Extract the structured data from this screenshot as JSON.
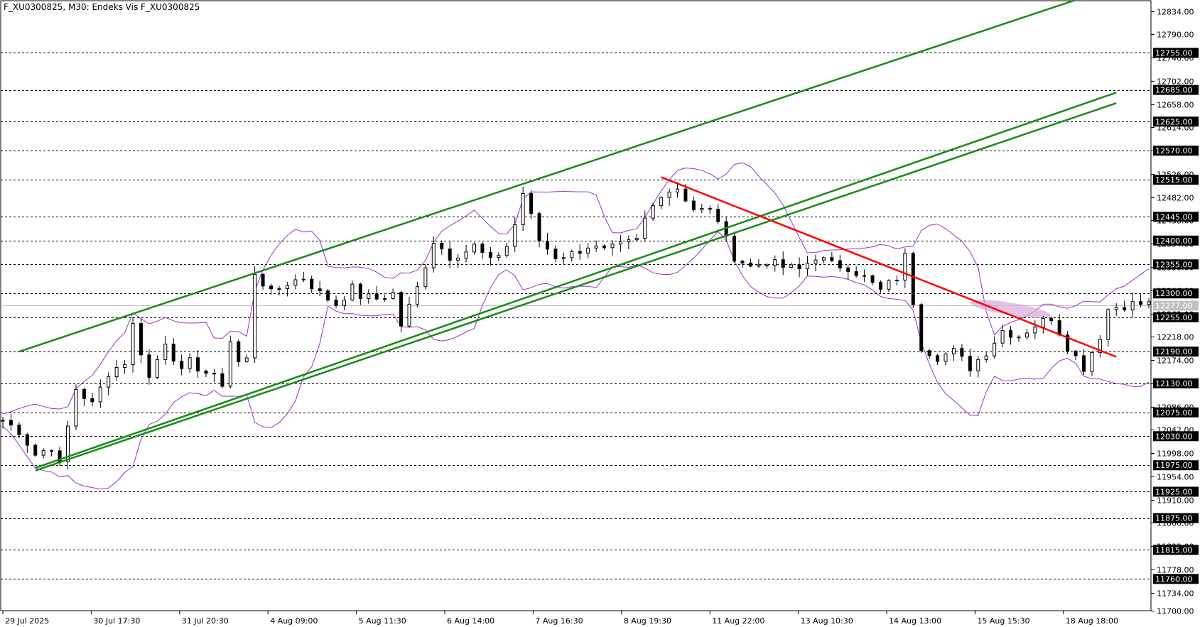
{
  "window": {
    "title": "F_XU0300825, M30:  Endeks Vis F_XU0300825"
  },
  "colors": {
    "background": "#ffffff",
    "grid_level": "#000000",
    "channel": "#1a8a1a",
    "trend": "#ff0000",
    "bands": "#9932cc",
    "candle": "#000000",
    "current_price_line": "#c0c0c0",
    "zone": "#d8a8d8"
  },
  "chart_data": {
    "type": "candlestick",
    "symbol": "F_XU0300825",
    "timeframe": "M30",
    "ylim": [
      11700,
      12855
    ],
    "x_tick_labels": [
      "29 Jul 2025",
      "30 Jul 17:30",
      "31 Jul 20:30",
      "4 Aug 09:00",
      "5 Aug 11:30",
      "6 Aug 14:00",
      "7 Aug 16:30",
      "8 Aug 19:30",
      "11 Aug 22:00",
      "13 Aug 10:30",
      "14 Aug 13:00",
      "15 Aug 15:30",
      "18 Aug 18:00"
    ],
    "y_tick_labels": [
      "12834.00",
      "12790.00",
      "12746.00",
      "12702.00",
      "12658.00",
      "12614.00",
      "12570.00",
      "12526.00",
      "12482.00",
      "12438.00",
      "12394.00",
      "12350.00",
      "12306.00",
      "12262.00",
      "12218.00",
      "12174.00",
      "12130.00",
      "12086.00",
      "12042.00",
      "11998.00",
      "11954.00",
      "11910.00",
      "11866.00",
      "11822.00",
      "11778.00",
      "11734.00",
      "11700.00"
    ],
    "y_ticks": [
      12834,
      12790,
      12746,
      12702,
      12658,
      12614,
      12570,
      12526,
      12482,
      12438,
      12394,
      12350,
      12306,
      12262,
      12218,
      12174,
      12130,
      12086,
      12042,
      11998,
      11954,
      11910,
      11866,
      11822,
      11778,
      11734,
      11700
    ],
    "horizontal_levels": [
      12755,
      12685,
      12625,
      12570,
      12515,
      12445,
      12400,
      12355,
      12300,
      12255,
      12190,
      12130,
      12075,
      12030,
      11975,
      11925,
      11875,
      11815,
      11760
    ],
    "horizontal_level_labels": [
      "12755.00",
      "12685.00",
      "12625.00",
      "12570.00",
      "12515.00",
      "12445.00",
      "12400.00",
      "12355.00",
      "12300.00",
      "12255.00",
      "12190.00",
      "12130.00",
      "12075.00",
      "12030.00",
      "11975.00",
      "11925.00",
      "11875.00",
      "11815.00",
      "11760.00"
    ],
    "current_price": 12277,
    "current_price_label": "12277.00",
    "anchors": [
      [
        0,
        12060
      ],
      [
        2,
        12040
      ],
      [
        4,
        11995
      ],
      [
        6,
        12010
      ],
      [
        7,
        11975
      ],
      [
        9,
        12120
      ],
      [
        11,
        12090
      ],
      [
        13,
        12150
      ],
      [
        15,
        12170
      ],
      [
        16,
        12240
      ],
      [
        18,
        12140
      ],
      [
        20,
        12210
      ],
      [
        22,
        12150
      ],
      [
        23,
        12170
      ],
      [
        25,
        12150
      ],
      [
        27,
        12130
      ],
      [
        28,
        12210
      ],
      [
        29,
        12170
      ],
      [
        30,
        12175
      ],
      [
        31,
        12340
      ],
      [
        33,
        12300
      ],
      [
        35,
        12320
      ],
      [
        37,
        12330
      ],
      [
        39,
        12300
      ],
      [
        41,
        12280
      ],
      [
        43,
        12310
      ],
      [
        44,
        12295
      ],
      [
        46,
        12290
      ],
      [
        48,
        12300
      ],
      [
        49,
        12240
      ],
      [
        51,
        12310
      ],
      [
        53,
        12400
      ],
      [
        55,
        12370
      ],
      [
        57,
        12380
      ],
      [
        58,
        12390
      ],
      [
        60,
        12360
      ],
      [
        62,
        12390
      ],
      [
        63,
        12430
      ],
      [
        64,
        12490
      ],
      [
        66,
        12400
      ],
      [
        68,
        12370
      ],
      [
        70,
        12375
      ],
      [
        72,
        12390
      ],
      [
        74,
        12380
      ],
      [
        76,
        12390
      ],
      [
        78,
        12400
      ],
      [
        79,
        12440
      ],
      [
        81,
        12490
      ],
      [
        83,
        12500
      ],
      [
        85,
        12460
      ],
      [
        87,
        12455
      ],
      [
        88,
        12440
      ],
      [
        89,
        12400
      ],
      [
        90,
        12370
      ],
      [
        92,
        12350
      ],
      [
        94,
        12360
      ],
      [
        96,
        12350
      ],
      [
        98,
        12345
      ],
      [
        100,
        12370
      ],
      [
        102,
        12355
      ],
      [
        104,
        12350
      ],
      [
        106,
        12330
      ],
      [
        108,
        12305
      ],
      [
        110,
        12330
      ],
      [
        111,
        12370
      ],
      [
        113,
        12200
      ],
      [
        115,
        12180
      ],
      [
        117,
        12190
      ],
      [
        119,
        12160
      ],
      [
        121,
        12190
      ],
      [
        123,
        12230
      ],
      [
        125,
        12220
      ],
      [
        127,
        12240
      ],
      [
        129,
        12255
      ],
      [
        131,
        12200
      ],
      [
        133,
        12160
      ],
      [
        135,
        12220
      ],
      [
        136,
        12270
      ],
      [
        137,
        12275
      ],
      [
        139,
        12280
      ],
      [
        141,
        12280
      ]
    ],
    "bollinger_bands": true,
    "channel_lines": [
      {
        "from": [
          2,
          12190
        ],
        "to": [
          132,
          12855
        ]
      },
      {
        "from": [
          4,
          11970
        ],
        "to": [
          137,
          12680
        ]
      },
      {
        "from": [
          4,
          11965
        ],
        "to": [
          137,
          12660
        ]
      }
    ],
    "trend_line": {
      "from": [
        81,
        12520
      ],
      "to": [
        137,
        12180
      ]
    },
    "zone": {
      "from": [
        119,
        12283
      ],
      "to": [
        129,
        12258
      ]
    }
  }
}
